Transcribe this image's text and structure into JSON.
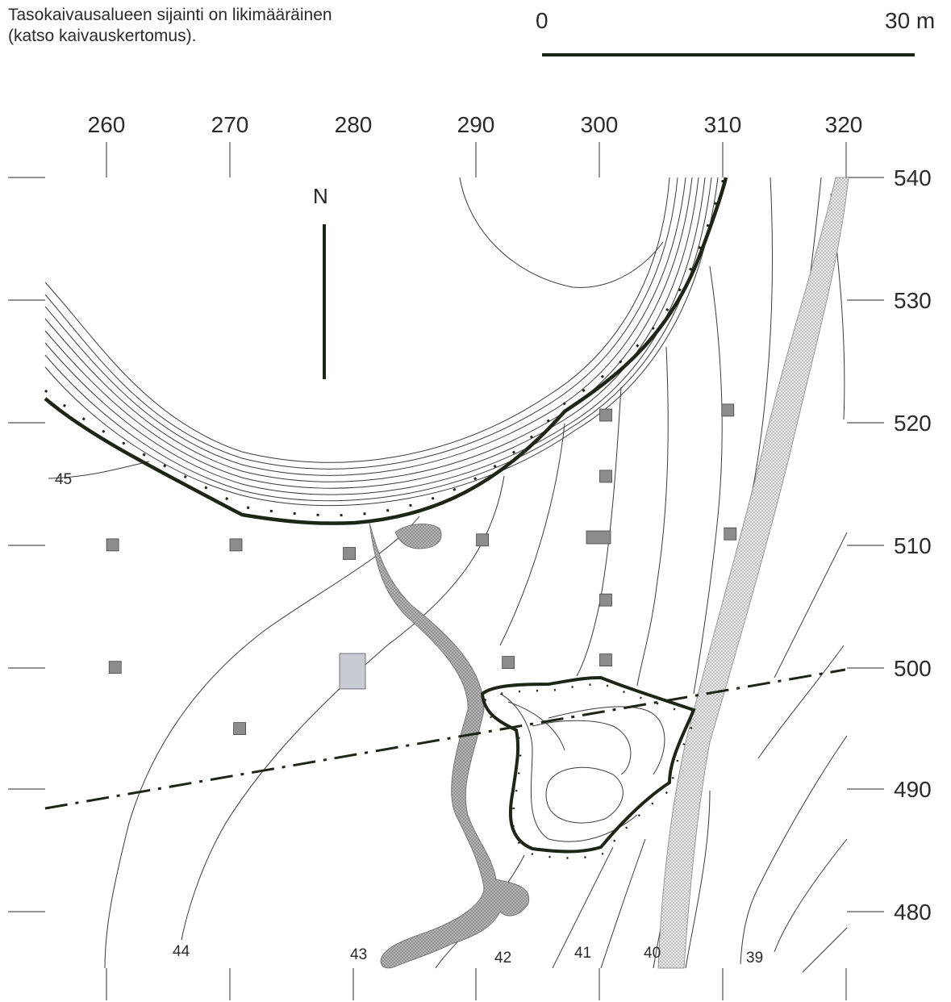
{
  "note": {
    "line1": "Tasokaivausalueen sijainti on likimääräinen",
    "line2": "(katso kaivauskertomus)."
  },
  "scale": {
    "start_label": "0",
    "end_label": "30 m",
    "length_m": 30
  },
  "north_label": "N",
  "grid": {
    "x_ticks": [
      "260",
      "270",
      "280",
      "290",
      "300",
      "310",
      "320"
    ],
    "y_ticks": [
      "540",
      "530",
      "520",
      "510",
      "500",
      "490",
      "480"
    ]
  },
  "contour_labels": {
    "c45": "45",
    "c44": "44",
    "c43": "43",
    "c42": "42",
    "c41": "41",
    "c40": "40",
    "c39": "39"
  },
  "colors": {
    "contour_line": "#3a3a3a",
    "edge_line": "#1d2616",
    "sample_square": "#8c8c8c",
    "light_square": "#c8cad4",
    "stream_fill": "#b9b9b9",
    "road_fill": "#d6d6d6"
  },
  "sample_points": [
    {
      "x": 260.5,
      "y": 510
    },
    {
      "x": 270.5,
      "y": 510
    },
    {
      "x": 279.7,
      "y": 509.3
    },
    {
      "x": 290.5,
      "y": 510.4
    },
    {
      "x": 260.7,
      "y": 500
    },
    {
      "x": 270.8,
      "y": 495
    },
    {
      "x": 292.6,
      "y": 500.4
    },
    {
      "x": 300.5,
      "y": 520.6
    },
    {
      "x": 300.5,
      "y": 515.6
    },
    {
      "x": 300.5,
      "y": 505.5
    },
    {
      "x": 300.5,
      "y": 500.6
    },
    {
      "x": 310.4,
      "y": 521
    },
    {
      "x": 310.6,
      "y": 510.9
    }
  ]
}
